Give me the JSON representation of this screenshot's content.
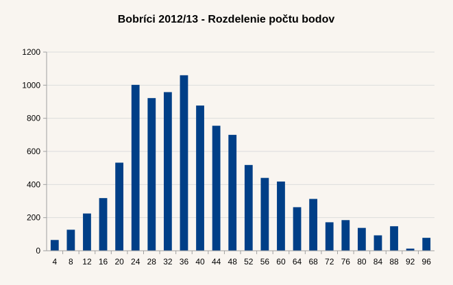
{
  "chart_data": {
    "type": "bar",
    "title": "Bobríci 2012/13 - Rozdelenie počtu bodov",
    "xlabel": "",
    "ylabel": "",
    "categories": [
      "4",
      "8",
      "12",
      "16",
      "20",
      "24",
      "28",
      "32",
      "36",
      "40",
      "44",
      "48",
      "52",
      "56",
      "60",
      "64",
      "68",
      "72",
      "76",
      "80",
      "84",
      "88",
      "92",
      "96"
    ],
    "values": [
      65,
      127,
      225,
      318,
      532,
      1002,
      922,
      958,
      1060,
      877,
      755,
      700,
      518,
      440,
      418,
      263,
      313,
      172,
      185,
      138,
      93,
      148,
      13,
      78
    ],
    "ylim": [
      0,
      1200
    ],
    "yticks": [
      "0",
      "200",
      "400",
      "600",
      "800",
      "1000",
      "1200"
    ],
    "grid": true,
    "legend": "none",
    "colors": {
      "bar": "#003f87",
      "background": "#f9f5f0",
      "grid": "#dcdcdc",
      "axis": "#a0a0a0"
    }
  }
}
